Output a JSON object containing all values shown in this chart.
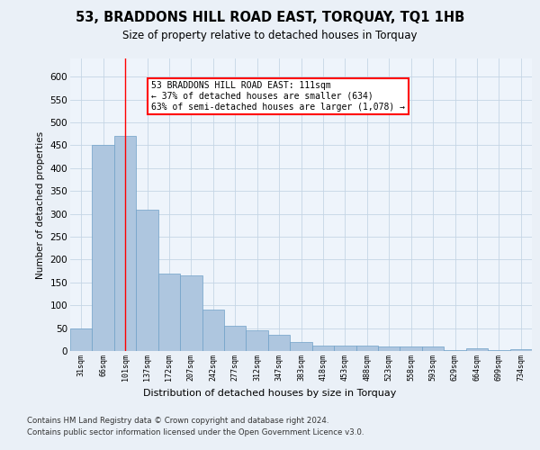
{
  "title1": "53, BRADDONS HILL ROAD EAST, TORQUAY, TQ1 1HB",
  "title2": "Size of property relative to detached houses in Torquay",
  "xlabel": "Distribution of detached houses by size in Torquay",
  "ylabel": "Number of detached properties",
  "categories": [
    "31sqm",
    "66sqm",
    "101sqm",
    "137sqm",
    "172sqm",
    "207sqm",
    "242sqm",
    "277sqm",
    "312sqm",
    "347sqm",
    "383sqm",
    "418sqm",
    "453sqm",
    "488sqm",
    "523sqm",
    "558sqm",
    "593sqm",
    "629sqm",
    "664sqm",
    "699sqm",
    "734sqm"
  ],
  "values": [
    50,
    450,
    470,
    310,
    170,
    165,
    90,
    55,
    45,
    35,
    20,
    12,
    11,
    11,
    10,
    10,
    9,
    2,
    6,
    2,
    3
  ],
  "bar_color": "#aec6df",
  "bar_edge_color": "#6fa0c8",
  "vline_x_index": 2,
  "vline_color": "red",
  "annotation_text": "53 BRADDONS HILL ROAD EAST: 111sqm\n← 37% of detached houses are smaller (634)\n63% of semi-detached houses are larger (1,078) →",
  "annotation_box_color": "white",
  "annotation_box_edge_color": "red",
  "ylim": [
    0,
    640
  ],
  "yticks": [
    0,
    50,
    100,
    150,
    200,
    250,
    300,
    350,
    400,
    450,
    500,
    550,
    600
  ],
  "footer1": "Contains HM Land Registry data © Crown copyright and database right 2024.",
  "footer2": "Contains public sector information licensed under the Open Government Licence v3.0.",
  "bg_color": "#eaf0f7",
  "plot_bg_color": "#eef4fb",
  "grid_color": "#c5d5e5"
}
